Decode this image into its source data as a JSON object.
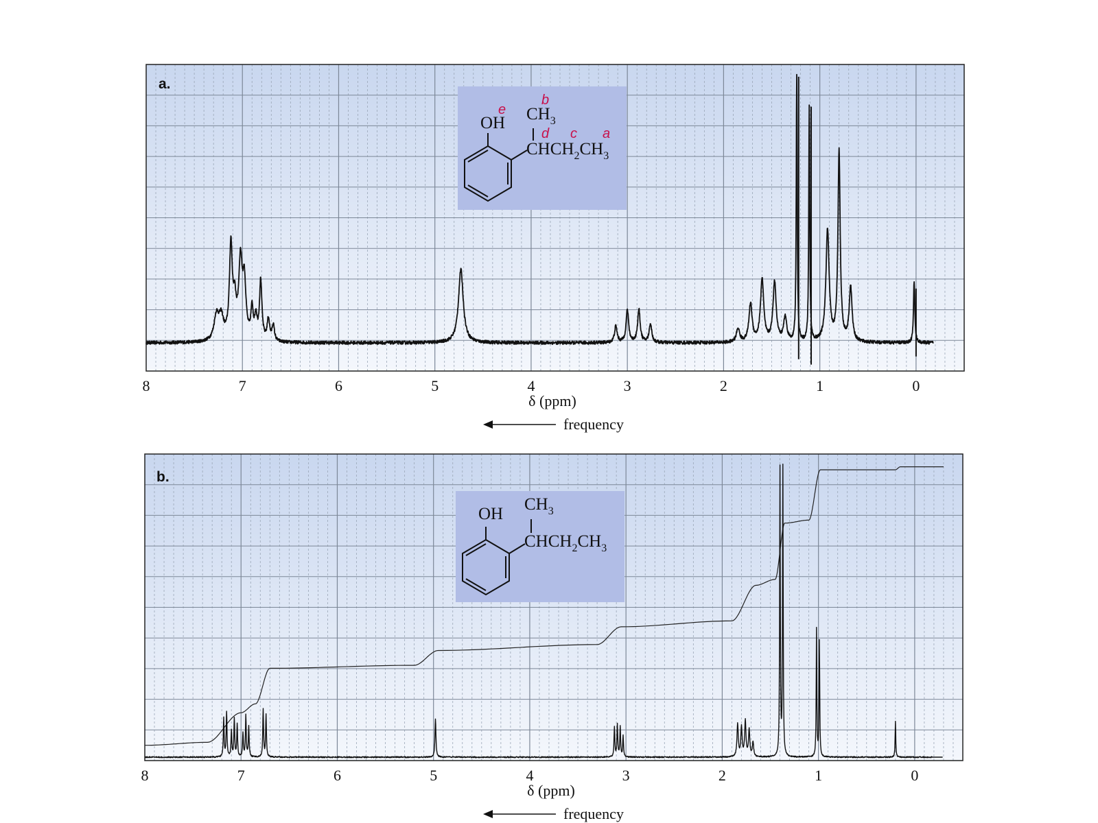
{
  "colors": {
    "grid_bg_top": "#c9d7ef",
    "grid_bg_bottom": "#f4f7fc",
    "grid_major": "#7c8797",
    "grid_minor": "#9aa6b6",
    "structure_box": "#b1bde6",
    "peak_label": "#c8104a",
    "trace": "#111111"
  },
  "arrow_label": "frequency",
  "chart_data": [
    {
      "panel": "a.",
      "type": "line",
      "xlabel": "δ (ppm)",
      "ylabel": "",
      "xlim": [
        8,
        -0.5
      ],
      "x_reversed": true,
      "x_ticks": [
        "8",
        "7",
        "6",
        "5",
        "4",
        "3",
        "2",
        "1",
        "0"
      ],
      "grid": true,
      "structure": {
        "oh": "OH",
        "ch3_top": "CH",
        "ch3_top_sub": "3",
        "chain_pre": "CHCH",
        "chain_sub1": "2",
        "chain_mid": "CH",
        "chain_sub2": "3",
        "peak_tags": [
          "e",
          "b",
          "d",
          "c",
          "a"
        ]
      },
      "peaks": [
        {
          "x": 7.27,
          "h": 0.09,
          "w": 0.03
        },
        {
          "x": 7.22,
          "h": 0.08,
          "w": 0.03
        },
        {
          "x": 7.12,
          "h": 0.34,
          "w": 0.018
        },
        {
          "x": 7.08,
          "h": 0.12,
          "w": 0.02
        },
        {
          "x": 7.02,
          "h": 0.28,
          "w": 0.022
        },
        {
          "x": 6.98,
          "h": 0.2,
          "w": 0.02
        },
        {
          "x": 6.9,
          "h": 0.11,
          "w": 0.015
        },
        {
          "x": 6.86,
          "h": 0.08,
          "w": 0.015
        },
        {
          "x": 6.81,
          "h": 0.22,
          "w": 0.015
        },
        {
          "x": 6.73,
          "h": 0.08,
          "w": 0.015
        },
        {
          "x": 6.68,
          "h": 0.06,
          "w": 0.015
        },
        {
          "x": 4.73,
          "h": 0.27,
          "w": 0.03
        },
        {
          "x": 3.12,
          "h": 0.06,
          "w": 0.016
        },
        {
          "x": 3.0,
          "h": 0.12,
          "w": 0.016
        },
        {
          "x": 2.88,
          "h": 0.12,
          "w": 0.016
        },
        {
          "x": 2.76,
          "h": 0.07,
          "w": 0.016
        },
        {
          "x": 1.85,
          "h": 0.05,
          "w": 0.02
        },
        {
          "x": 1.72,
          "h": 0.14,
          "w": 0.02
        },
        {
          "x": 1.6,
          "h": 0.23,
          "w": 0.02
        },
        {
          "x": 1.47,
          "h": 0.22,
          "w": 0.02
        },
        {
          "x": 1.36,
          "h": 0.09,
          "w": 0.02
        },
        {
          "x": 1.24,
          "h": 0.98,
          "w": 0.006
        },
        {
          "x": 1.11,
          "h": 0.87,
          "w": 0.006
        },
        {
          "x": 0.92,
          "h": 0.41,
          "w": 0.02
        },
        {
          "x": 0.8,
          "h": 0.7,
          "w": 0.014
        },
        {
          "x": 0.68,
          "h": 0.2,
          "w": 0.018
        },
        {
          "x": 0.02,
          "h": 0.23,
          "w": 0.008
        }
      ],
      "noise": 0.006,
      "spikes": [
        {
          "x": 1.22,
          "y0": -0.06,
          "y1": 0.98
        },
        {
          "x": 1.09,
          "y0": -0.08,
          "y1": 0.87
        },
        {
          "x": 0.0,
          "y0": -0.05,
          "y1": 0.2
        }
      ]
    },
    {
      "panel": "b.",
      "type": "line",
      "xlabel": "δ (ppm)",
      "ylabel": "",
      "xlim": [
        8,
        -0.5
      ],
      "x_reversed": true,
      "x_ticks": [
        "8",
        "7",
        "6",
        "5",
        "4",
        "3",
        "2",
        "1",
        "0"
      ],
      "grid": true,
      "structure": {
        "oh": "OH",
        "ch3_top": "CH",
        "ch3_top_sub": "3",
        "chain_pre": "CHCH",
        "chain_sub1": "2",
        "chain_mid": "CH",
        "chain_sub2": "3"
      },
      "peaks": [
        {
          "x": 7.18,
          "h": 0.13,
          "w": 0.005
        },
        {
          "x": 7.15,
          "h": 0.15,
          "w": 0.005
        },
        {
          "x": 7.1,
          "h": 0.09,
          "w": 0.005
        },
        {
          "x": 7.07,
          "h": 0.13,
          "w": 0.005
        },
        {
          "x": 7.04,
          "h": 0.11,
          "w": 0.005
        },
        {
          "x": 6.98,
          "h": 0.08,
          "w": 0.005
        },
        {
          "x": 6.95,
          "h": 0.14,
          "w": 0.005
        },
        {
          "x": 6.92,
          "h": 0.1,
          "w": 0.005
        },
        {
          "x": 6.77,
          "h": 0.16,
          "w": 0.005
        },
        {
          "x": 6.74,
          "h": 0.14,
          "w": 0.005
        },
        {
          "x": 4.98,
          "h": 0.13,
          "w": 0.006
        },
        {
          "x": 3.12,
          "h": 0.1,
          "w": 0.005
        },
        {
          "x": 3.09,
          "h": 0.11,
          "w": 0.005
        },
        {
          "x": 3.06,
          "h": 0.1,
          "w": 0.005
        },
        {
          "x": 3.03,
          "h": 0.07,
          "w": 0.005
        },
        {
          "x": 1.84,
          "h": 0.11,
          "w": 0.008
        },
        {
          "x": 1.8,
          "h": 0.1,
          "w": 0.008
        },
        {
          "x": 1.76,
          "h": 0.12,
          "w": 0.008
        },
        {
          "x": 1.72,
          "h": 0.09,
          "w": 0.008
        },
        {
          "x": 1.68,
          "h": 0.05,
          "w": 0.008
        },
        {
          "x": 1.4,
          "h": 0.97,
          "w": 0.004
        },
        {
          "x": 1.37,
          "h": 0.97,
          "w": 0.004
        },
        {
          "x": 1.02,
          "h": 0.43,
          "w": 0.004
        },
        {
          "x": 0.99,
          "h": 0.39,
          "w": 0.004
        },
        {
          "x": 0.2,
          "h": 0.12,
          "w": 0.004
        }
      ],
      "noise": 0.002,
      "integral": [
        {
          "x": 8.0,
          "y": 0.04
        },
        {
          "x": 7.35,
          "y": 0.05
        },
        {
          "x": 7.0,
          "y": 0.15
        },
        {
          "x": 6.85,
          "y": 0.18
        },
        {
          "x": 6.7,
          "y": 0.3
        },
        {
          "x": 5.2,
          "y": 0.31
        },
        {
          "x": 4.95,
          "y": 0.36
        },
        {
          "x": 3.3,
          "y": 0.38
        },
        {
          "x": 3.05,
          "y": 0.44
        },
        {
          "x": 1.9,
          "y": 0.46
        },
        {
          "x": 1.65,
          "y": 0.58
        },
        {
          "x": 1.45,
          "y": 0.6
        },
        {
          "x": 1.35,
          "y": 0.79
        },
        {
          "x": 1.1,
          "y": 0.8
        },
        {
          "x": 0.98,
          "y": 0.97
        },
        {
          "x": 0.2,
          "y": 0.97
        },
        {
          "x": 0.15,
          "y": 0.98
        },
        {
          "x": -0.3,
          "y": 0.98
        }
      ]
    }
  ]
}
